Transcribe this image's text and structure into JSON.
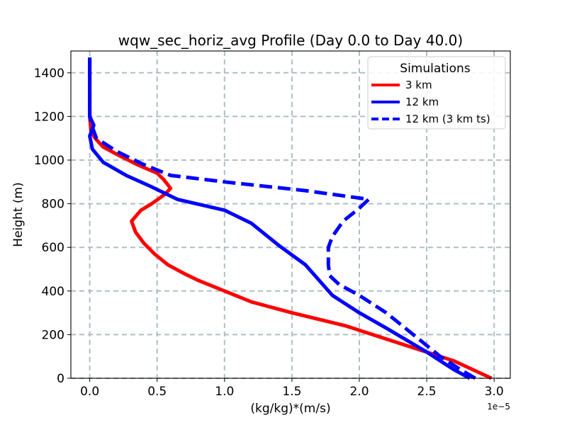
{
  "chart_data": {
    "type": "line",
    "title": "wqw_sec_horiz_avg Profile (Day 0.0 to Day 40.0)",
    "xlabel": "(kg/kg)*(m/s)",
    "ylabel": "Height (m)",
    "x_offset_label": "1e−5",
    "xlim": [
      -0.14,
      3.12
    ],
    "ylim": [
      0,
      1500
    ],
    "xticks": [
      0.0,
      0.5,
      1.0,
      1.5,
      2.0,
      2.5,
      3.0
    ],
    "xtick_labels": [
      "0.0",
      "0.5",
      "1.0",
      "1.5",
      "2.0",
      "2.5",
      "3.0"
    ],
    "yticks": [
      0,
      200,
      400,
      600,
      800,
      1000,
      1200,
      1400
    ],
    "ytick_labels": [
      "0",
      "200",
      "400",
      "600",
      "800",
      "1000",
      "1200",
      "1400"
    ],
    "grid": true,
    "legend": {
      "title": "Simulations",
      "position": "top-right"
    },
    "series": [
      {
        "name": "3 km",
        "color": "#ff0000",
        "dash": "solid",
        "points": [
          [
            2.98,
            0
          ],
          [
            2.7,
            80
          ],
          [
            2.3,
            160
          ],
          [
            1.9,
            240
          ],
          [
            1.5,
            300
          ],
          [
            1.2,
            350
          ],
          [
            1.0,
            400
          ],
          [
            0.8,
            450
          ],
          [
            0.7,
            480
          ],
          [
            0.58,
            520
          ],
          [
            0.48,
            570
          ],
          [
            0.4,
            620
          ],
          [
            0.34,
            670
          ],
          [
            0.31,
            720
          ],
          [
            0.38,
            770
          ],
          [
            0.46,
            800
          ],
          [
            0.55,
            840
          ],
          [
            0.6,
            870
          ],
          [
            0.55,
            910
          ],
          [
            0.5,
            940
          ],
          [
            0.35,
            980
          ],
          [
            0.22,
            1020
          ],
          [
            0.1,
            1060
          ],
          [
            0.04,
            1100
          ],
          [
            0.01,
            1130
          ],
          [
            0.0,
            1200
          ],
          [
            0.0,
            1300
          ],
          [
            0.0,
            1400
          ],
          [
            0.0,
            1470
          ]
        ]
      },
      {
        "name": "12 km",
        "color": "#0000ff",
        "dash": "solid",
        "points": [
          [
            2.82,
            0
          ],
          [
            2.7,
            40
          ],
          [
            2.5,
            120
          ],
          [
            2.2,
            230
          ],
          [
            2.0,
            300
          ],
          [
            1.8,
            380
          ],
          [
            1.6,
            520
          ],
          [
            1.4,
            610
          ],
          [
            1.2,
            710
          ],
          [
            1.0,
            770
          ],
          [
            0.65,
            820
          ],
          [
            0.45,
            880
          ],
          [
            0.27,
            930
          ],
          [
            0.1,
            990
          ],
          [
            0.02,
            1050
          ],
          [
            0.0,
            1110
          ],
          [
            0.03,
            1160
          ],
          [
            0.0,
            1200
          ],
          [
            0.0,
            1300
          ],
          [
            0.0,
            1400
          ],
          [
            0.0,
            1470
          ]
        ]
      },
      {
        "name": "12 km (3 km ts)",
        "color": "#0000ff",
        "dash": "dashed",
        "points": [
          [
            2.86,
            0
          ],
          [
            2.75,
            40
          ],
          [
            2.6,
            100
          ],
          [
            2.4,
            200
          ],
          [
            2.2,
            300
          ],
          [
            2.0,
            380
          ],
          [
            1.85,
            430
          ],
          [
            1.78,
            470
          ],
          [
            1.77,
            520
          ],
          [
            1.77,
            600
          ],
          [
            1.8,
            650
          ],
          [
            1.88,
            720
          ],
          [
            2.0,
            780
          ],
          [
            2.07,
            820
          ],
          [
            1.6,
            860
          ],
          [
            1.0,
            900
          ],
          [
            0.6,
            930
          ],
          [
            0.4,
            980
          ],
          [
            0.2,
            1040
          ],
          [
            0.05,
            1100
          ],
          [
            0.02,
            1150
          ],
          [
            0.0,
            1200
          ],
          [
            0.0,
            1300
          ],
          [
            0.0,
            1400
          ],
          [
            0.0,
            1470
          ]
        ]
      }
    ]
  }
}
